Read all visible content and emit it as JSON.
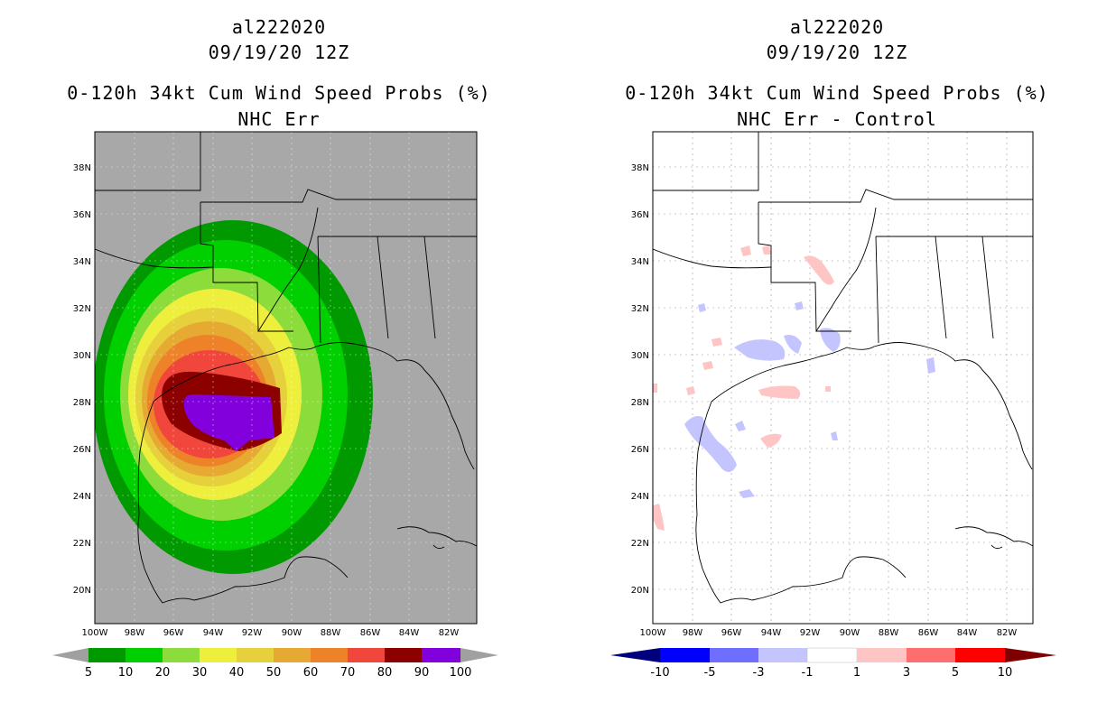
{
  "panels": [
    {
      "storm_id": "al222020",
      "datetime": "09/19/20 12Z",
      "product": "0-120h 34kt Cum Wind Speed Probs (%)",
      "subtitle": "NHC Err",
      "legend": {
        "labels": [
          "5",
          "10",
          "20",
          "30",
          "40",
          "50",
          "60",
          "70",
          "80",
          "90",
          "100"
        ],
        "colors": [
          "#009a00",
          "#00d000",
          "#8cdc3c",
          "#eeee3c",
          "#e6d03c",
          "#e6aa32",
          "#ee8228",
          "#f0463c",
          "#8c0000",
          "#8200dc"
        ],
        "end_color": "#a0a0a0"
      }
    },
    {
      "storm_id": "al222020",
      "datetime": "09/19/20 12Z",
      "product": "0-120h 34kt Cum Wind Speed Probs (%)",
      "subtitle": "NHC Err - Control",
      "legend": {
        "labels": [
          "-10",
          "-5",
          "-3",
          "-1",
          "1",
          "3",
          "5",
          "10"
        ],
        "colors": [
          "#0000ff",
          "#6e6eff",
          "#c4c4ff",
          "#ffffff",
          "#ffc4c4",
          "#ff6e6e",
          "#ff0000"
        ],
        "end_low_color": "#00007e",
        "end_high_color": "#7e0000"
      }
    }
  ],
  "axes": {
    "lon_labels": [
      "100W",
      "98W",
      "96W",
      "94W",
      "92W",
      "90W",
      "88W",
      "86W",
      "84W",
      "82W"
    ],
    "lat_labels": [
      "38N",
      "36N",
      "34N",
      "32N",
      "30N",
      "28N",
      "26N",
      "24N",
      "22N",
      "20N"
    ]
  },
  "colors": {
    "land_bg": "#a8a8a8",
    "ring_10": "#009a00",
    "ring_20": "#00d000",
    "ring_30": "#8cdc3c",
    "ring_40": "#eeee3c",
    "ring_50": "#e6d03c",
    "ring_60": "#e6aa32",
    "ring_70": "#ee8228",
    "ring_80": "#f0463c",
    "ring_90": "#8c0000",
    "core_100": "#8200dc",
    "diff_blue": "#c4c4ff",
    "diff_red": "#ffc4c4"
  }
}
